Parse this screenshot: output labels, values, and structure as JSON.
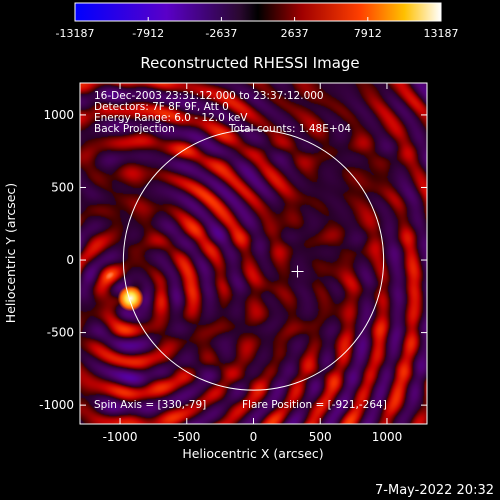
{
  "chart_data": {
    "type": "heatmap",
    "title": "Reconstructed RHESSI Image",
    "xlabel": "Heliocentric X (arcsec)",
    "ylabel": "Heliocentric Y (arcsec)",
    "xlim": [
      -1300,
      1300
    ],
    "ylim": [
      -1130,
      1220
    ],
    "x_ticks": [
      -1000,
      -500,
      0,
      500,
      1000
    ],
    "y_ticks": [
      -1000,
      -500,
      0,
      500,
      1000
    ],
    "colorbar": {
      "min": -13187,
      "max": 13187,
      "ticks": [
        -13187,
        -7912,
        -2637,
        2637,
        7912,
        13187
      ]
    },
    "annotations": [
      "16-Dec-2003 23:31:12.000 to 23:37:12.000",
      "Detectors: 7F 8F 9F, Att 0",
      "Energy Range: 6.0 - 12.0 keV",
      "Back Projection",
      "Total counts: 1.48E+04"
    ],
    "spin_axis": "Spin Axis = [330,-79]",
    "flare_position": "Flare Position = [-921,-264]",
    "source": {
      "x": -921,
      "y": -264
    },
    "spin_axis_point": {
      "x": 330,
      "y": -79
    },
    "solar_limb_radius": 975
  },
  "footer": {
    "timestamp": "7-May-2022 20:32"
  },
  "colors": {
    "background": "#000000",
    "limb": "#ffffff",
    "text": "#ffffff"
  }
}
